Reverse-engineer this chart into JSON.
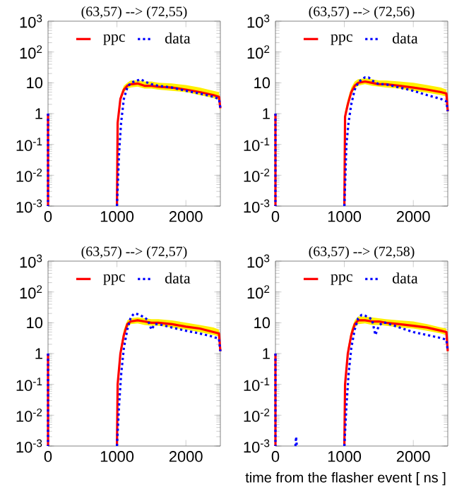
{
  "chart_data": [
    {
      "type": "line",
      "title": "(63,57) --> (72,55)",
      "xlim": [
        0,
        2500
      ],
      "xticks": [
        0,
        1000,
        2000
      ],
      "ylim": [
        0.001,
        1000
      ],
      "yticks": [
        {
          "value": 0.001,
          "label": "10$^{-3}$"
        },
        {
          "value": 0.01,
          "label": "10$^{-2}$"
        },
        {
          "value": 0.1,
          "label": "10$^{-1}$"
        },
        {
          "value": 1,
          "label": "1"
        },
        {
          "value": 10,
          "label": "10"
        },
        {
          "value": 100,
          "label": "10$^{2}$"
        },
        {
          "value": 1000,
          "label": "10$^{3}$"
        }
      ],
      "log": "y",
      "legend": "top",
      "series": [
        {
          "name": "ppc",
          "color": "#ff0000",
          "line_style": "solid",
          "x": [
            0,
            0,
            500,
            1000,
            1010,
            1050,
            1100,
            1150,
            1200,
            1300,
            1400,
            1500,
            1600,
            1800,
            2000,
            2200,
            2400,
            2480,
            2500
          ],
          "values": [
            1,
            0.001,
            null,
            0.001,
            0.5,
            3,
            6,
            8,
            9,
            9.5,
            8,
            8,
            7.5,
            7,
            6,
            5,
            4,
            3.5,
            1.5
          ],
          "lower": [
            null,
            null,
            null,
            null,
            0.4,
            2.5,
            5,
            6.5,
            7,
            7.5,
            6.5,
            6.5,
            6,
            5.5,
            5,
            4,
            3.2,
            2.8,
            1.2
          ],
          "upper": [
            null,
            null,
            null,
            null,
            0.7,
            4,
            8,
            10,
            12,
            12,
            11,
            11,
            10,
            9.5,
            8.5,
            7,
            5.5,
            5,
            2
          ]
        },
        {
          "name": "data",
          "color": "#0000ff",
          "line_style": "dotted",
          "x": [
            0,
            0,
            500,
            1000,
            1030,
            1060,
            1100,
            1150,
            1200,
            1300,
            1350,
            1400,
            1500,
            1600,
            1800,
            2000,
            2200,
            2400,
            2480,
            2500
          ],
          "values": [
            1,
            0.001,
            null,
            0.001,
            0.05,
            0.5,
            3,
            7,
            10,
            12,
            13,
            11,
            9,
            8,
            7,
            5.5,
            4.5,
            3.5,
            3,
            1.5
          ]
        }
      ]
    },
    {
      "type": "line",
      "title": "(63,57) --> (72,56)",
      "xlim": [
        0,
        2500
      ],
      "xticks": [
        0,
        1000,
        2000
      ],
      "ylim": [
        0.001,
        1000
      ],
      "yticks": [
        {
          "value": 0.001,
          "label": "10$^{-3}$"
        },
        {
          "value": 0.01,
          "label": "10$^{-2}$"
        },
        {
          "value": 0.1,
          "label": "10$^{-1}$"
        },
        {
          "value": 1,
          "label": "1"
        },
        {
          "value": 10,
          "label": "10"
        },
        {
          "value": 100,
          "label": "10$^{2}$"
        },
        {
          "value": 1000,
          "label": "10$^{3}$"
        }
      ],
      "log": "y",
      "legend": "top",
      "series": [
        {
          "name": "ppc",
          "color": "#ff0000",
          "line_style": "solid",
          "x": [
            0,
            0,
            500,
            1000,
            1010,
            1050,
            1100,
            1150,
            1200,
            1300,
            1400,
            1500,
            1600,
            1800,
            2000,
            2200,
            2400,
            2480,
            2500
          ],
          "values": [
            1,
            0.001,
            null,
            0.001,
            0.8,
            2,
            5,
            8,
            10,
            11,
            10,
            9,
            9,
            8,
            7,
            6,
            5,
            4.5,
            1.2
          ],
          "lower": [
            null,
            null,
            null,
            null,
            0.6,
            1.6,
            4,
            6.5,
            8,
            9,
            8,
            7.5,
            7,
            6.5,
            5.5,
            4.8,
            4,
            3.6,
            1
          ],
          "upper": [
            null,
            null,
            null,
            null,
            1.2,
            3,
            7,
            11,
            13,
            14,
            13,
            12,
            12,
            11,
            10,
            8.5,
            7,
            6,
            1.6
          ]
        },
        {
          "name": "data",
          "color": "#0000ff",
          "line_style": "dotted",
          "x": [
            0,
            0,
            500,
            1000,
            1030,
            1060,
            1100,
            1150,
            1200,
            1250,
            1300,
            1350,
            1400,
            1500,
            1600,
            1800,
            2000,
            2200,
            2400,
            2480,
            2500
          ],
          "values": [
            1,
            0.001,
            null,
            0.001,
            0.1,
            0.5,
            2,
            6,
            10,
            13,
            15,
            15,
            12,
            9,
            9,
            7,
            5.5,
            4,
            3,
            2.5,
            1.2
          ]
        }
      ]
    },
    {
      "type": "line",
      "title": "(63,57) --> (72,57)",
      "xlim": [
        0,
        2500
      ],
      "xticks": [
        0,
        1000,
        2000
      ],
      "ylim": [
        0.001,
        1000
      ],
      "yticks": [
        {
          "value": 0.001,
          "label": "10$^{-3}$"
        },
        {
          "value": 0.01,
          "label": "10$^{-2}$"
        },
        {
          "value": 0.1,
          "label": "10$^{-1}$"
        },
        {
          "value": 1,
          "label": "1"
        },
        {
          "value": 10,
          "label": "10"
        },
        {
          "value": 100,
          "label": "10$^{2}$"
        },
        {
          "value": 1000,
          "label": "10$^{3}$"
        }
      ],
      "log": "y",
      "legend": "top",
      "series": [
        {
          "name": "ppc",
          "color": "#ff0000",
          "line_style": "solid",
          "x": [
            0,
            0,
            500,
            1000,
            1010,
            1050,
            1100,
            1150,
            1200,
            1300,
            1400,
            1500,
            1600,
            1800,
            2000,
            2200,
            2400,
            2480,
            2500
          ],
          "values": [
            1,
            0.001,
            null,
            0.001,
            0.1,
            1,
            4,
            9,
            11,
            12,
            11,
            10,
            10,
            9,
            7.5,
            6.5,
            5,
            4.5,
            1.2
          ],
          "lower": [
            null,
            null,
            null,
            null,
            0.08,
            0.8,
            3,
            7,
            9,
            9.5,
            8.5,
            8,
            8,
            7,
            6,
            5,
            4,
            3.6,
            1
          ],
          "upper": [
            null,
            null,
            null,
            null,
            0.15,
            1.5,
            6,
            12,
            14,
            15,
            14,
            13,
            13,
            12,
            10,
            8.5,
            7,
            6,
            1.6
          ]
        },
        {
          "name": "data",
          "color": "#0000ff",
          "line_style": "dotted",
          "x": [
            0,
            0,
            500,
            1000,
            1030,
            1060,
            1100,
            1150,
            1200,
            1250,
            1300,
            1400,
            1450,
            1500,
            1550,
            1600,
            1800,
            2000,
            2200,
            2400,
            2480,
            2500
          ],
          "values": [
            1,
            0.001,
            null,
            0.001,
            0.02,
            0.2,
            1.5,
            6,
            15,
            20,
            19,
            15,
            12,
            6,
            9,
            9,
            7,
            5.5,
            4.5,
            3.5,
            3,
            1.2
          ]
        }
      ]
    },
    {
      "type": "line",
      "title": "(63,57) --> (72,58)",
      "xlabel": "time from the flasher event [ ns ]",
      "xlim": [
        0,
        2500
      ],
      "xticks": [
        0,
        1000,
        2000
      ],
      "ylim": [
        0.001,
        1000
      ],
      "yticks": [
        {
          "value": 0.001,
          "label": "10$^{-3}$"
        },
        {
          "value": 0.01,
          "label": "10$^{-2}$"
        },
        {
          "value": 0.1,
          "label": "10$^{-1}$"
        },
        {
          "value": 1,
          "label": "1"
        },
        {
          "value": 10,
          "label": "10"
        },
        {
          "value": 100,
          "label": "10$^{2}$"
        },
        {
          "value": 1000,
          "label": "10$^{3}$"
        }
      ],
      "log": "y",
      "legend": "top",
      "series": [
        {
          "name": "ppc",
          "color": "#ff0000",
          "line_style": "solid",
          "x": [
            0,
            0,
            500,
            1000,
            1010,
            1050,
            1100,
            1150,
            1200,
            1300,
            1400,
            1500,
            1600,
            1800,
            2000,
            2200,
            2400,
            2480,
            2500
          ],
          "values": [
            1,
            0.001,
            null,
            0.001,
            0.1,
            1,
            4,
            9,
            12,
            12,
            11,
            11,
            10,
            9,
            8,
            7,
            5.5,
            5,
            1.2
          ],
          "lower": [
            null,
            null,
            null,
            null,
            0.08,
            0.8,
            3,
            7,
            9,
            9.5,
            8.5,
            8.5,
            8,
            7,
            6.5,
            5.5,
            4.5,
            4,
            1
          ],
          "upper": [
            null,
            null,
            null,
            null,
            0.15,
            1.5,
            6,
            12,
            16,
            16,
            15,
            14,
            13,
            12,
            11,
            9,
            7,
            6.5,
            1.6
          ]
        },
        {
          "name": "data",
          "color": "#0000ff",
          "line_style": "dotted",
          "x": [
            0,
            0,
            100,
            290,
            300,
            310,
            500,
            1000,
            1030,
            1060,
            1100,
            1150,
            1200,
            1250,
            1300,
            1400,
            1450,
            1500,
            1550,
            1600,
            1800,
            2000,
            2200,
            2400,
            2480,
            2500
          ],
          "values": [
            1,
            0.001,
            null,
            0.001,
            0.002,
            0.001,
            null,
            0.001,
            0.02,
            0.2,
            1.5,
            6,
            14,
            18,
            17,
            13,
            4,
            8,
            10,
            10,
            7,
            5,
            4,
            3.2,
            2.8,
            1.2
          ]
        }
      ]
    }
  ]
}
